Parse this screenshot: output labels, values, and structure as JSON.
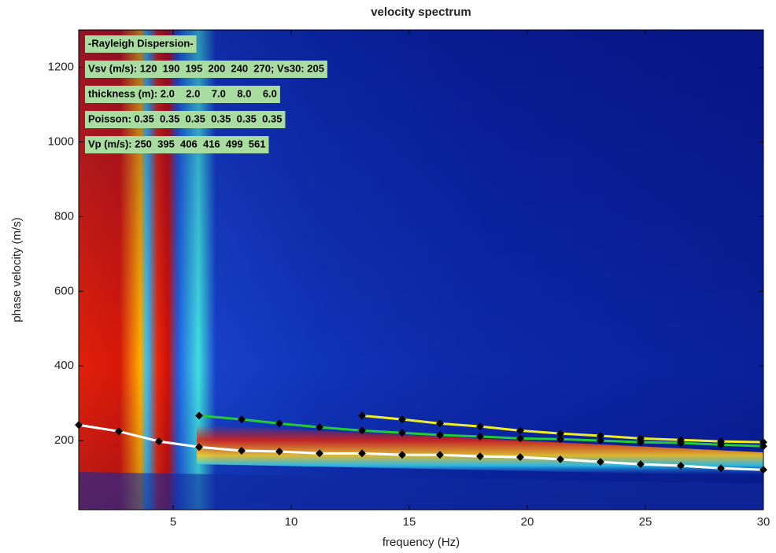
{
  "chart_data": {
    "type": "line",
    "title": "velocity spectrum",
    "x_label": "frequency (Hz)",
    "y_label": "phase velocity (m/s)",
    "xlim": [
      1,
      30
    ],
    "ylim": [
      15,
      1300
    ],
    "xticks": [
      5,
      10,
      15,
      20,
      25,
      30
    ],
    "yticks": [
      200,
      400,
      600,
      800,
      1000,
      1200
    ],
    "annotations": [
      "-Rayleigh Dispersion-",
      "Vsv (m/s): 120  190  195  200  240  270; Vs30: 205",
      "thickness (m): 2.0    2.0    7.0    8.0    6.0",
      "Poisson: 0.35  0.35  0.35  0.35  0.35  0.35",
      "Vp (m/s): 250  395  406  416  499  561"
    ],
    "series": [
      {
        "color": "#ffffff",
        "x": [
          1,
          2.7,
          4.4,
          6.1,
          7.9,
          9.5,
          11.2,
          13,
          14.7,
          16.3,
          18,
          19.7,
          21.4,
          23.1,
          24.8,
          26.5,
          28.2,
          30
        ],
        "values": [
          242,
          225,
          198,
          183,
          173,
          171,
          166,
          166,
          162,
          162,
          158,
          156,
          150,
          143,
          137,
          133,
          126,
          122
        ]
      },
      {
        "color": "#22cc33",
        "x": [
          6.1,
          7.9,
          9.5,
          11.2,
          13,
          14.7,
          16.3,
          18,
          19.7,
          21.4,
          23.1,
          24.8,
          26.5,
          28.2,
          30
        ],
        "values": [
          267,
          257,
          246,
          236,
          227,
          221,
          215,
          211,
          206,
          204,
          200,
          196,
          194,
          189,
          185
        ]
      },
      {
        "color": "#eeee22",
        "x": [
          13,
          14.7,
          16.3,
          18,
          19.7,
          21.4,
          23.1,
          24.8,
          26.5,
          28.2,
          30
        ],
        "values": [
          267,
          257,
          246,
          238,
          227,
          219,
          213,
          206,
          202,
          198,
          196
        ]
      }
    ]
  }
}
